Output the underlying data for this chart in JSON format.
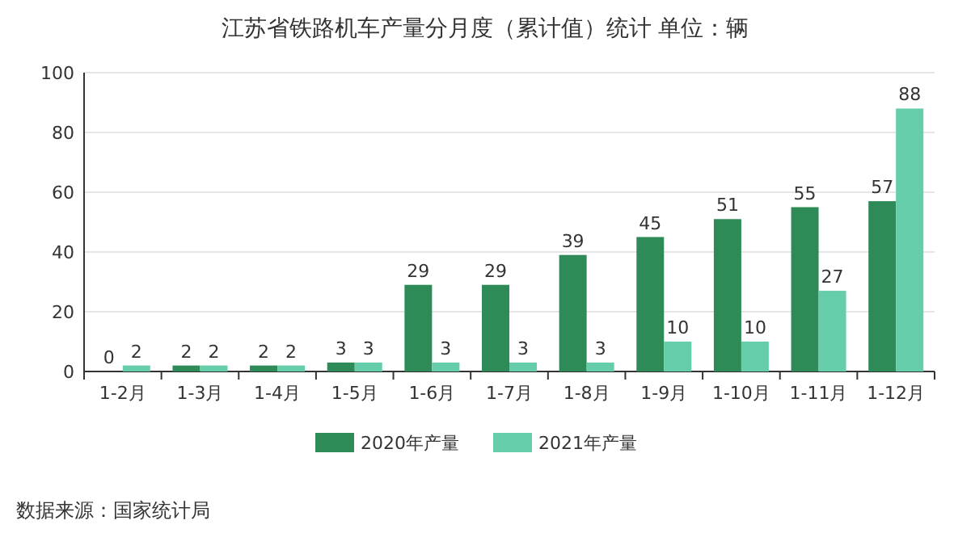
{
  "chart_data": {
    "type": "bar",
    "title": "江苏省铁路机车产量分月度（累计值）统计 单位：辆",
    "categories": [
      "1-2月",
      "1-3月",
      "1-4月",
      "1-5月",
      "1-6月",
      "1-7月",
      "1-8月",
      "1-9月",
      "1-10月",
      "1-11月",
      "1-12月"
    ],
    "series": [
      {
        "name": "2020年产量",
        "color": "#2e8b57",
        "values": [
          0,
          2,
          2,
          3,
          29,
          29,
          39,
          45,
          51,
          55,
          57
        ]
      },
      {
        "name": "2021年产量",
        "color": "#66cdaa",
        "values": [
          2,
          2,
          2,
          3,
          3,
          3,
          3,
          10,
          10,
          27,
          88
        ]
      }
    ],
    "ylim": [
      0,
      100
    ],
    "yticks": [
      0,
      20,
      40,
      60,
      80,
      100
    ],
    "grid": "y",
    "legend": "bottom",
    "data_labels": true,
    "annotations": [
      "数据来源：国家统计局"
    ]
  }
}
